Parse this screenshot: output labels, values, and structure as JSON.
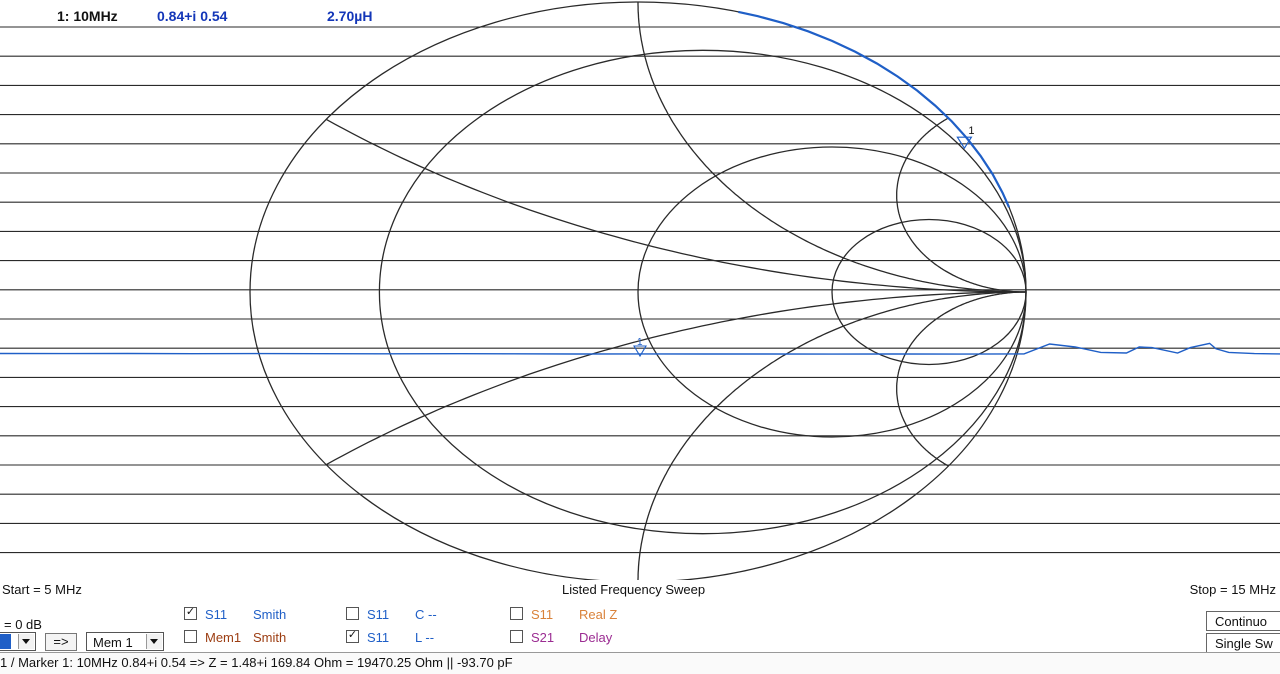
{
  "marker_readout": {
    "label": "1: 10MHz",
    "gamma": "0.84+i 0.54",
    "inductance": "2.70µH"
  },
  "sweep": {
    "start": "Start = 5 MHz",
    "mode": "Listed Frequency Sweep",
    "stop": "Stop = 15 MHz"
  },
  "traces": [
    {
      "checked": true,
      "name": "S11",
      "format": "Smith",
      "name_color": "blue",
      "format_color": "blue"
    },
    {
      "checked": false,
      "name": "Mem1",
      "format": "Smith",
      "name_color": "brown",
      "format_color": "brown"
    },
    {
      "checked": false,
      "name": "S11",
      "format": "C --",
      "name_color": "blue",
      "format_color": "blue"
    },
    {
      "checked": true,
      "name": "S11",
      "format": "L --",
      "name_color": "blue",
      "format_color": "blue"
    },
    {
      "checked": false,
      "name": "S11",
      "format": "Real Z",
      "name_color": "orange",
      "format_color": "orange"
    },
    {
      "checked": false,
      "name": "S21",
      "format": "Delay",
      "name_color": "purple",
      "format_color": "purple"
    }
  ],
  "reference": "= 0 dB",
  "arrow_button": "=>",
  "memory_select": "Mem 1",
  "buttons": {
    "continuous": "Continuo",
    "single": "Single Sw"
  },
  "status_bar": "1 / Marker 1: 10MHz   0.84+i 0.54 => Z =    1.48+i 169.84 Ohm  = 19470.25 Ohm ||   -93.70 pF",
  "colors": {
    "trace": "#1f5fc7",
    "grid": "#2a2a2a",
    "marker_label": "#1336b8"
  },
  "chart_data": {
    "type": "smith",
    "marker": {
      "id": "1",
      "frequency": "10MHz",
      "gamma_real": 0.84,
      "gamma_imag": 0.54
    },
    "resistance_circles": [
      0,
      0.2,
      1,
      3
    ],
    "reactance_arcs": [
      0.33,
      1,
      3,
      -0.33,
      -1,
      -3
    ],
    "s11_trace_angle_deg": [
      17,
      20,
      24,
      28,
      32,
      36,
      40,
      44,
      48,
      52,
      56,
      60,
      64,
      68,
      72,
      75
    ],
    "s11_trace_magnitude": 1.0,
    "l_trace": [
      [
        0.0,
        0.0042
      ],
      [
        0.05,
        0.004
      ],
      [
        0.1,
        0.0041
      ],
      [
        0.15,
        0.0038
      ],
      [
        0.2,
        0.004
      ],
      [
        0.25,
        0.0039
      ],
      [
        0.3,
        0.0037
      ],
      [
        0.36,
        0.0038
      ],
      [
        0.4,
        0.0036
      ],
      [
        0.45,
        0.0034
      ],
      [
        0.5,
        0.0035
      ],
      [
        0.55,
        0.0033
      ],
      [
        0.6,
        0.0034
      ],
      [
        0.65,
        0.0032
      ],
      [
        0.7,
        0.0034
      ],
      [
        0.75,
        0.0031
      ],
      [
        0.8,
        0.0035
      ],
      [
        0.82,
        0.02
      ],
      [
        0.84,
        0.015
      ],
      [
        0.86,
        0.006
      ],
      [
        0.88,
        0.005
      ],
      [
        0.89,
        0.015
      ],
      [
        0.9,
        0.014
      ],
      [
        0.92,
        0.005
      ],
      [
        0.93,
        0.014
      ],
      [
        0.945,
        0.021
      ],
      [
        0.95,
        0.012
      ],
      [
        0.96,
        0.006
      ],
      [
        0.98,
        0.004
      ],
      [
        1.0,
        0.0035
      ]
    ],
    "l_marker": {
      "id": "1",
      "x_fraction": 0.5
    }
  }
}
